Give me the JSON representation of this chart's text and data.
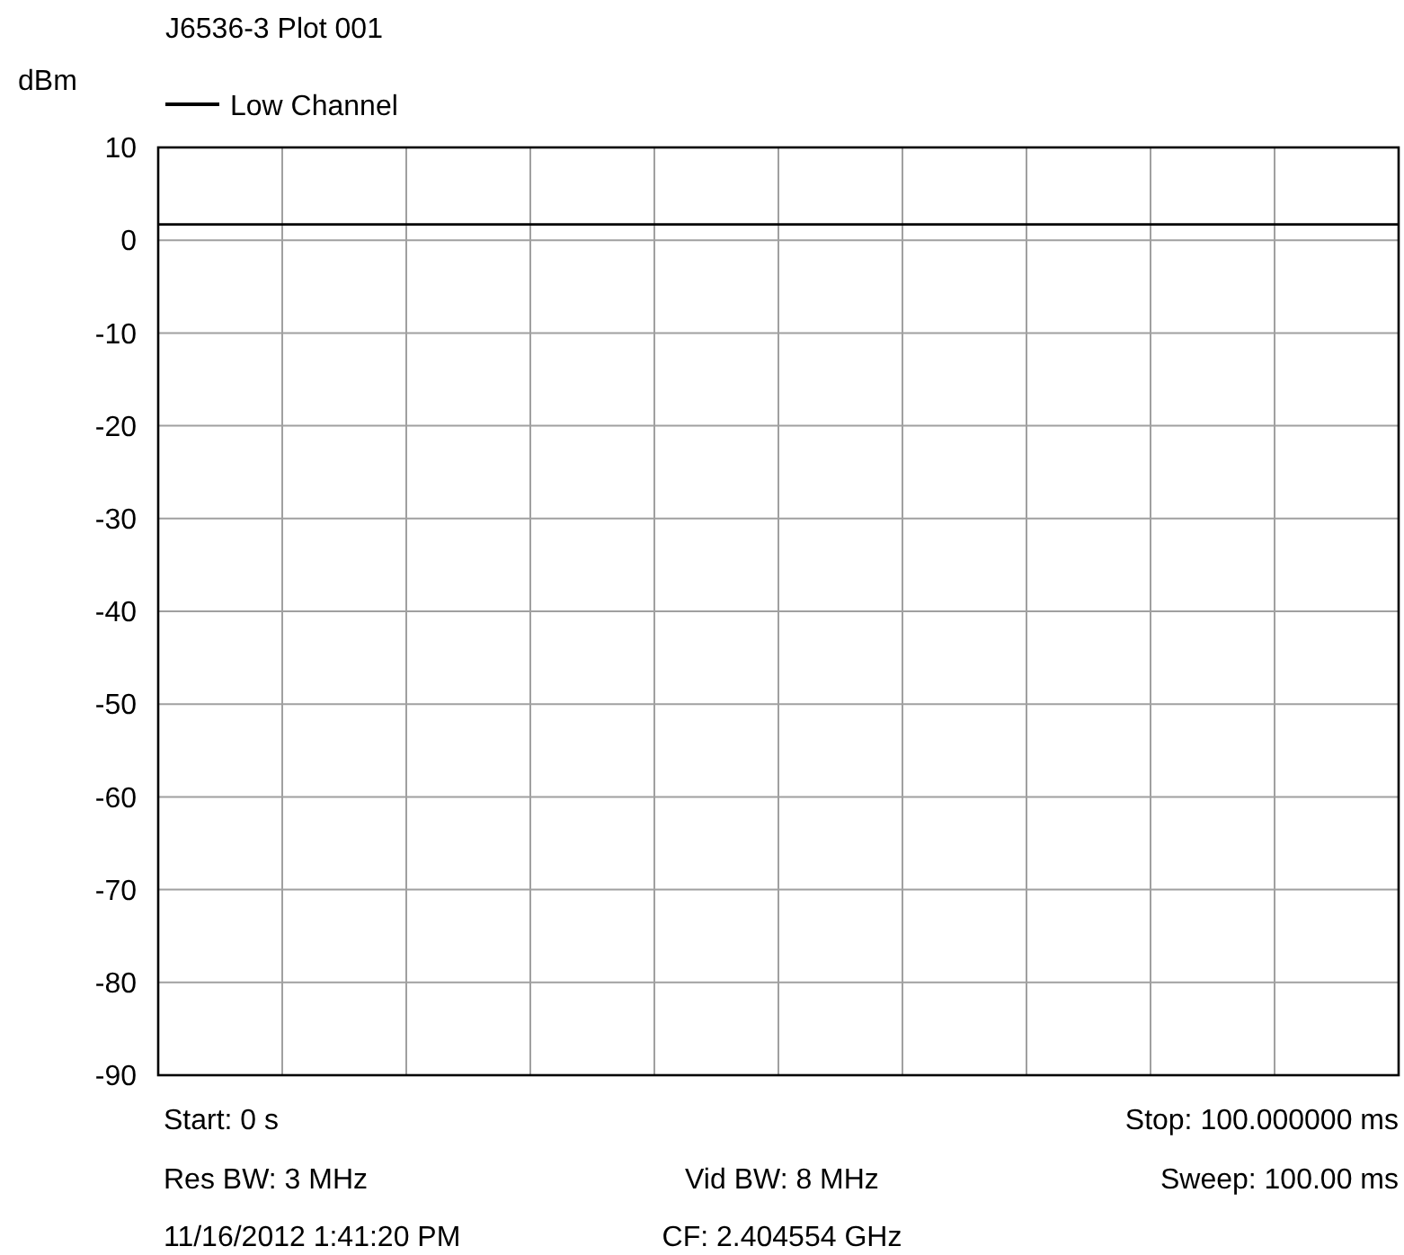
{
  "chart_data": {
    "type": "line",
    "title": "J6536-3 Plot 001",
    "ylabel": "dBm",
    "categories": [
      null,
      null,
      null,
      null,
      null,
      null,
      null,
      null,
      null,
      null,
      null
    ],
    "series": [
      {
        "name": "Low Channel",
        "color": "#000000",
        "values": [
          1.7,
          1.7,
          1.7,
          1.7,
          1.7,
          1.7,
          1.7,
          1.7,
          1.7,
          1.7,
          1.7
        ]
      }
    ],
    "ylim": [
      -90,
      10
    ],
    "yticks": [
      -90,
      -80,
      -70,
      -60,
      -50,
      -40,
      -30,
      -20,
      -10,
      0,
      10
    ],
    "tick_labels": "y",
    "grid": true,
    "legend": "top left",
    "marker": "none",
    "line_style": "solid",
    "annotations": [
      "Start: 0 s",
      "Stop: 100.000000 ms",
      "Res BW: 3 MHz",
      "Vid BW: 8 MHz",
      "Sweep: 100.00 ms",
      "11/16/2012 1:41:20 PM",
      "CF: 2.404554 GHz"
    ]
  }
}
